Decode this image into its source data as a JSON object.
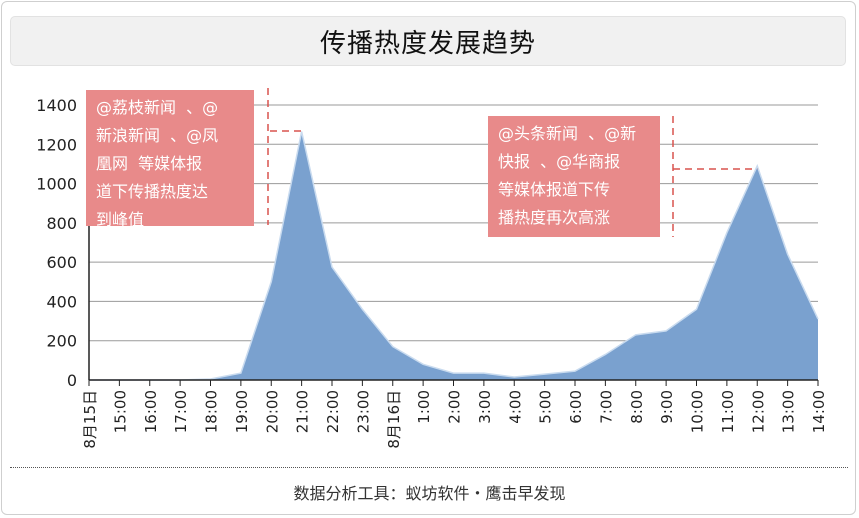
{
  "title": "传播热度发展趋势",
  "footer": "数据分析工具：蚁坊软件・鹰击早发现",
  "annotations": [
    {
      "text": "@荔枝新闻  、@\n新浪新闻  、@凤\n凰网  等媒体报\n道下传播热度达\n到峰值",
      "points_to": "21:00"
    },
    {
      "text": "@头条新闻  、@新\n快报  、@华商报\n等媒体报道下传\n播热度再次高涨",
      "points_to": "12:00"
    }
  ],
  "colors": {
    "area": "#7aa1cf",
    "area_stroke": "#c9dbef",
    "callout": "#e88a8a",
    "grid": "#9a9a9a",
    "leader": "#d9534f"
  },
  "chart_data": {
    "type": "area",
    "title": "传播热度发展趋势",
    "xlabel": "",
    "ylabel": "",
    "ylim": [
      0,
      1400
    ],
    "yticks": [
      0,
      200,
      400,
      600,
      800,
      1000,
      1200,
      1400
    ],
    "grid": true,
    "categories": [
      "8月15日",
      "15:00",
      "16:00",
      "17:00",
      "18:00",
      "19:00",
      "20:00",
      "21:00",
      "22:00",
      "23:00",
      "8月16日",
      "1:00",
      "2:00",
      "3:00",
      "4:00",
      "5:00",
      "6:00",
      "7:00",
      "8:00",
      "9:00",
      "10:00",
      "11:00",
      "12:00",
      "13:00",
      "14:00"
    ],
    "values": [
      0,
      0,
      0,
      0,
      5,
      35,
      500,
      1265,
      575,
      360,
      170,
      80,
      35,
      35,
      15,
      30,
      45,
      130,
      230,
      250,
      360,
      750,
      1090,
      640,
      310
    ]
  }
}
